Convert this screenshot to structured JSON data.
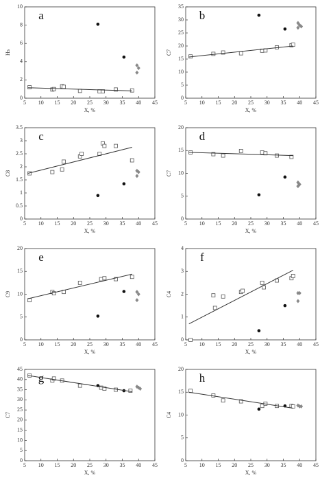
{
  "chart_data": [
    {
      "type": "scatter",
      "label": "a",
      "ylabel": "Hs",
      "xlabel": "X, %",
      "xlim": [
        5,
        45
      ],
      "xticks": [
        5,
        10,
        15,
        20,
        25,
        30,
        35,
        40,
        45
      ],
      "ylim": [
        0,
        10
      ],
      "yticks": [
        0,
        2,
        4,
        6,
        8,
        10
      ],
      "series": [
        {
          "marker": "square",
          "color": "#555555",
          "x": [
            6.5,
            13.5,
            14,
            16.5,
            17,
            22,
            28,
            29,
            33,
            38
          ],
          "values": [
            1.2,
            0.95,
            1.0,
            1.3,
            1.25,
            0.8,
            0.75,
            0.75,
            0.95,
            0.85
          ]
        },
        {
          "marker": "circle",
          "color": "#111111",
          "x": [
            27.5,
            35.5
          ],
          "values": [
            8.1,
            4.5
          ]
        },
        {
          "marker": "diamond",
          "color": "#888888",
          "x": [
            39.5,
            40,
            39.5
          ],
          "values": [
            3.6,
            3.3,
            2.8
          ]
        },
        {
          "marker": "line",
          "color": "#333333",
          "x": [
            6,
            38
          ],
          "values": [
            1.15,
            0.8
          ]
        }
      ]
    },
    {
      "type": "scatter",
      "label": "b",
      "ylabel": "C7",
      "xlabel": "X, %",
      "xlim": [
        5,
        45
      ],
      "xticks": [
        5,
        10,
        15,
        20,
        25,
        30,
        35,
        40,
        45
      ],
      "ylim": [
        0,
        35
      ],
      "yticks": [
        0,
        5,
        10,
        15,
        20,
        25,
        30,
        35
      ],
      "series": [
        {
          "marker": "square",
          "color": "#555555",
          "x": [
            6.5,
            13.5,
            16.5,
            22,
            28.5,
            29.5,
            33,
            37.5,
            38
          ],
          "values": [
            16,
            17,
            17.5,
            17.2,
            18.2,
            18.3,
            19.5,
            20.3,
            20.5
          ]
        },
        {
          "marker": "circle",
          "color": "#111111",
          "x": [
            27.5,
            35.5
          ],
          "values": [
            31.8,
            26.5
          ]
        },
        {
          "marker": "diamond",
          "color": "#888888",
          "x": [
            39.5,
            40,
            39.5,
            40.5
          ],
          "values": [
            28.8,
            28,
            27,
            27.5
          ]
        },
        {
          "marker": "line",
          "color": "#333333",
          "x": [
            6,
            38
          ],
          "values": [
            15.8,
            20
          ]
        }
      ]
    },
    {
      "type": "scatter",
      "label": "c",
      "ylabel": "C8",
      "xlabel": "X, %",
      "xlim": [
        5,
        45
      ],
      "xticks": [
        5,
        10,
        15,
        20,
        25,
        30,
        35,
        40,
        45
      ],
      "ylim": [
        0,
        3.5
      ],
      "yticks": [
        0,
        0.5,
        1,
        1.5,
        2,
        2.5,
        3,
        3.5
      ],
      "series": [
        {
          "marker": "square",
          "color": "#555555",
          "x": [
            6.5,
            13.5,
            16.5,
            17,
            22,
            22.5,
            28,
            29,
            29.5,
            33,
            38
          ],
          "values": [
            1.75,
            1.8,
            1.9,
            2.2,
            2.4,
            2.5,
            2.5,
            2.9,
            2.8,
            2.8,
            2.25
          ]
        },
        {
          "marker": "circle",
          "color": "#111111",
          "x": [
            27.5,
            35.5
          ],
          "values": [
            0.9,
            1.35
          ]
        },
        {
          "marker": "diamond",
          "color": "#888888",
          "x": [
            39.5,
            40,
            39.5
          ],
          "values": [
            1.85,
            1.8,
            1.65
          ]
        },
        {
          "marker": "line",
          "color": "#333333",
          "x": [
            6,
            38
          ],
          "values": [
            1.75,
            2.75
          ]
        }
      ]
    },
    {
      "type": "scatter",
      "label": "d",
      "ylabel": "C7",
      "xlabel": "X, %",
      "xlim": [
        5,
        45
      ],
      "xticks": [
        5,
        10,
        15,
        20,
        25,
        30,
        35,
        40,
        45
      ],
      "ylim": [
        0,
        20
      ],
      "yticks": [
        0,
        5,
        10,
        15,
        20
      ],
      "series": [
        {
          "marker": "square",
          "color": "#555555",
          "x": [
            6.5,
            13.5,
            16.5,
            22,
            28.5,
            29.5,
            33,
            37.5
          ],
          "values": [
            14.6,
            14.2,
            13.9,
            14.9,
            14.6,
            14.4,
            13.9,
            13.6
          ]
        },
        {
          "marker": "circle",
          "color": "#111111",
          "x": [
            27.5,
            35.5
          ],
          "values": [
            5.3,
            9.2
          ]
        },
        {
          "marker": "diamond",
          "color": "#888888",
          "x": [
            39.5,
            40,
            39.5
          ],
          "values": [
            8,
            7.6,
            7.2
          ]
        },
        {
          "marker": "line",
          "color": "#333333",
          "x": [
            6,
            38
          ],
          "values": [
            14.6,
            13.9
          ]
        }
      ]
    },
    {
      "type": "scatter",
      "label": "e",
      "ylabel": "C9",
      "xlabel": "X, %",
      "xlim": [
        5,
        45
      ],
      "xticks": [
        5,
        10,
        15,
        20,
        25,
        30,
        35,
        40,
        45
      ],
      "ylim": [
        0,
        20
      ],
      "yticks": [
        0,
        5,
        10,
        15,
        20
      ],
      "series": [
        {
          "marker": "square",
          "color": "#555555",
          "x": [
            6.5,
            13.5,
            14,
            17,
            22,
            28.5,
            29.5,
            33,
            38
          ],
          "values": [
            8.7,
            10.5,
            10.2,
            10.5,
            12.5,
            13.3,
            13.5,
            13.3,
            13.8
          ]
        },
        {
          "marker": "circle",
          "color": "#111111",
          "x": [
            27.5,
            35.5
          ],
          "values": [
            5.2,
            10.6
          ]
        },
        {
          "marker": "diamond",
          "color": "#888888",
          "x": [
            39.5,
            40,
            39.5
          ],
          "values": [
            10.5,
            10,
            8.7
          ]
        },
        {
          "marker": "line",
          "color": "#333333",
          "x": [
            6,
            38
          ],
          "values": [
            9,
            14.4
          ]
        }
      ]
    },
    {
      "type": "scatter",
      "label": "f",
      "ylabel": "C4",
      "xlabel": "X, %",
      "xlim": [
        5,
        45
      ],
      "xticks": [
        5,
        10,
        15,
        20,
        25,
        30,
        35,
        40,
        45
      ],
      "ylim": [
        0,
        4
      ],
      "yticks": [
        0,
        1,
        2,
        3,
        4
      ],
      "series": [
        {
          "marker": "square",
          "color": "#555555",
          "x": [
            6.5,
            13.5,
            14,
            16.5,
            22,
            22.5,
            28.5,
            29,
            33,
            37.5,
            38
          ],
          "values": [
            0,
            1.95,
            1.4,
            1.9,
            2.1,
            2.15,
            2.5,
            2.3,
            2.6,
            2.7,
            2.8
          ]
        },
        {
          "marker": "circle",
          "color": "#111111",
          "x": [
            27.5,
            35.5
          ],
          "values": [
            0.4,
            1.5
          ]
        },
        {
          "marker": "diamond",
          "color": "#888888",
          "x": [
            39.5,
            40,
            39.5
          ],
          "values": [
            2.05,
            2.05,
            1.7
          ]
        },
        {
          "marker": "line",
          "color": "#333333",
          "x": [
            6,
            38
          ],
          "values": [
            0.7,
            3.05
          ]
        }
      ]
    },
    {
      "type": "scatter",
      "label": "g",
      "ylabel": "C7",
      "xlabel": "X, %",
      "xlim": [
        5,
        45
      ],
      "xticks": [
        5,
        10,
        15,
        20,
        25,
        30,
        35,
        40,
        45
      ],
      "ylim": [
        0,
        45
      ],
      "yticks": [
        0,
        5,
        10,
        15,
        20,
        25,
        30,
        35,
        40,
        45
      ],
      "series": [
        {
          "marker": "square",
          "color": "#555555",
          "x": [
            6.5,
            13.5,
            14,
            16.5,
            22,
            28.5,
            29.5,
            33,
            37.5
          ],
          "values": [
            42,
            39.5,
            40.5,
            39.5,
            37,
            36,
            35.5,
            35,
            34.5
          ]
        },
        {
          "marker": "circle",
          "color": "#111111",
          "x": [
            27.5,
            35.5
          ],
          "values": [
            37,
            34.5
          ]
        },
        {
          "marker": "diamond",
          "color": "#888888",
          "x": [
            39.5,
            40,
            40.5
          ],
          "values": [
            36.5,
            36,
            35.5
          ]
        },
        {
          "marker": "line",
          "color": "#333333",
          "x": [
            6,
            38
          ],
          "values": [
            42,
            34
          ]
        }
      ]
    },
    {
      "type": "scatter",
      "label": "h",
      "ylabel": "C4",
      "xlabel": "X, %",
      "xlim": [
        5,
        45
      ],
      "xticks": [
        5,
        10,
        15,
        20,
        25,
        30,
        35,
        40,
        45
      ],
      "ylim": [
        0,
        20
      ],
      "yticks": [
        0,
        5,
        10,
        15,
        20
      ],
      "series": [
        {
          "marker": "square",
          "color": "#555555",
          "x": [
            6.5,
            13.5,
            16.5,
            22,
            28.5,
            29.5,
            33,
            37.5,
            38
          ],
          "values": [
            15.3,
            14.3,
            13.2,
            13,
            12,
            12.5,
            12,
            12,
            11.9
          ]
        },
        {
          "marker": "circle",
          "color": "#111111",
          "x": [
            27.5,
            35.5
          ],
          "values": [
            11.3,
            12
          ]
        },
        {
          "marker": "diamond",
          "color": "#888888",
          "x": [
            39.5,
            40,
            40.5
          ],
          "values": [
            12.1,
            11.9,
            11.9
          ]
        },
        {
          "marker": "line",
          "color": "#333333",
          "x": [
            6,
            38
          ],
          "values": [
            15,
            11.5
          ]
        }
      ]
    }
  ]
}
